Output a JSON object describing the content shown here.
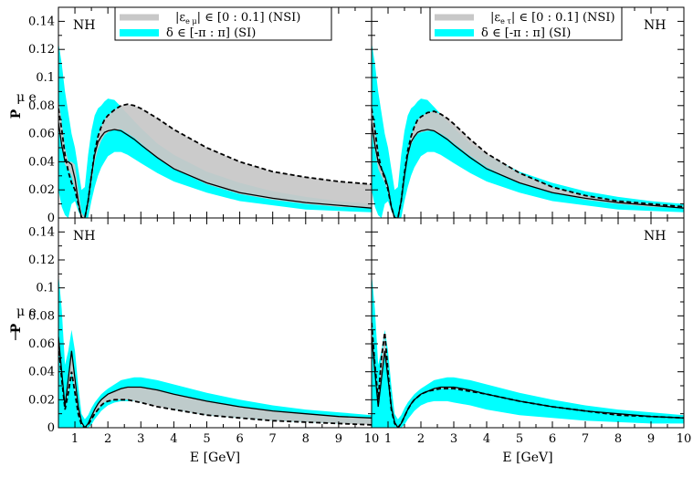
{
  "colors": {
    "nsi_band": "#c8c8c8",
    "si_band": "#00ffff",
    "line": "#000000"
  },
  "chart_data": [
    {
      "panel": "top-left",
      "type": "area",
      "ylabel": "P",
      "ylabel_sub": "μ e",
      "ylabel_bar": false,
      "xlabel": "",
      "hierarchy": "NH",
      "nh_position": "top-left",
      "legend": {
        "placement": "top-center",
        "entries": [
          {
            "name": "|ε",
            "sub": "e μ",
            "post": "| ∈ [0 : 0.1] (NSI)",
            "color": "#c8c8c8"
          },
          {
            "name": "δ ∈ [-π : π] (SI)",
            "sub": "",
            "post": "",
            "color": "#00ffff"
          }
        ]
      },
      "xlim": [
        0.5,
        10
      ],
      "ylim": [
        0,
        0.15
      ],
      "yticks": [
        "0",
        "0.02",
        "0.04",
        "0.06",
        "0.08",
        "0.1",
        "0.12",
        "0.14"
      ],
      "xticks": [],
      "x": [
        0.5,
        0.6,
        0.7,
        0.8,
        0.9,
        1.0,
        1.1,
        1.2,
        1.3,
        1.4,
        1.5,
        1.6,
        1.7,
        1.8,
        1.9,
        2.0,
        2.2,
        2.4,
        2.6,
        2.8,
        3.0,
        3.5,
        4.0,
        5.0,
        6.0,
        7.0,
        8.0,
        9.0,
        10.0
      ],
      "si_upper": [
        0.125,
        0.11,
        0.09,
        0.075,
        0.06,
        0.05,
        0.035,
        0.02,
        0.022,
        0.045,
        0.062,
        0.073,
        0.078,
        0.08,
        0.083,
        0.085,
        0.084,
        0.079,
        0.074,
        0.069,
        0.064,
        0.053,
        0.045,
        0.033,
        0.025,
        0.019,
        0.015,
        0.012,
        0.01
      ],
      "si_lower": [
        0.02,
        0.008,
        0.002,
        0.0,
        0.01,
        0.012,
        0.005,
        0.0,
        0.0,
        0.0,
        0.012,
        0.022,
        0.03,
        0.036,
        0.04,
        0.044,
        0.047,
        0.047,
        0.045,
        0.042,
        0.039,
        0.032,
        0.026,
        0.018,
        0.012,
        0.009,
        0.006,
        0.005,
        0.004
      ],
      "nsi_upper": [
        0.085,
        0.068,
        0.05,
        0.04,
        0.04,
        0.038,
        0.02,
        0.004,
        0.0,
        0.012,
        0.03,
        0.047,
        0.058,
        0.065,
        0.07,
        0.073,
        0.077,
        0.08,
        0.081,
        0.08,
        0.078,
        0.071,
        0.063,
        0.05,
        0.04,
        0.033,
        0.029,
        0.026,
        0.024
      ],
      "nsi_lower": [
        0.065,
        0.05,
        0.038,
        0.035,
        0.03,
        0.02,
        0.008,
        0.0,
        0.0,
        0.008,
        0.025,
        0.04,
        0.049,
        0.055,
        0.059,
        0.061,
        0.063,
        0.063,
        0.06,
        0.057,
        0.053,
        0.043,
        0.035,
        0.024,
        0.017,
        0.013,
        0.01,
        0.008,
        0.007
      ],
      "solid": [
        0.068,
        0.052,
        0.04,
        0.04,
        0.038,
        0.028,
        0.012,
        0.0,
        0.0,
        0.012,
        0.03,
        0.045,
        0.054,
        0.058,
        0.061,
        0.062,
        0.063,
        0.062,
        0.059,
        0.056,
        0.052,
        0.043,
        0.035,
        0.025,
        0.018,
        0.014,
        0.011,
        0.009,
        0.007
      ],
      "dashed": [
        0.078,
        0.063,
        0.045,
        0.033,
        0.025,
        0.02,
        0.01,
        0.0,
        0.0,
        0.012,
        0.03,
        0.047,
        0.058,
        0.065,
        0.07,
        0.073,
        0.077,
        0.08,
        0.081,
        0.08,
        0.078,
        0.071,
        0.063,
        0.05,
        0.04,
        0.033,
        0.029,
        0.026,
        0.024
      ]
    },
    {
      "panel": "top-right",
      "type": "area",
      "ylabel": "",
      "ylabel_sub": "",
      "ylabel_bar": false,
      "xlabel": "",
      "hierarchy": "NH",
      "nh_position": "top-right",
      "legend": {
        "placement": "top-center",
        "entries": [
          {
            "name": "|ε",
            "sub": "e τ",
            "post": "| ∈ [0 : 0.1] (NSI)",
            "color": "#c8c8c8"
          },
          {
            "name": "δ ∈ [-π : π] (SI)",
            "sub": "",
            "post": "",
            "color": "#00ffff"
          }
        ]
      },
      "xlim": [
        0.5,
        10
      ],
      "ylim": [
        0,
        0.15
      ],
      "yticks": [],
      "xticks": [],
      "x": [
        0.5,
        0.6,
        0.7,
        0.8,
        0.9,
        1.0,
        1.1,
        1.2,
        1.3,
        1.4,
        1.5,
        1.6,
        1.7,
        1.8,
        1.9,
        2.0,
        2.2,
        2.4,
        2.6,
        2.8,
        3.0,
        3.5,
        4.0,
        5.0,
        6.0,
        7.0,
        8.0,
        9.0,
        10.0
      ],
      "si_upper": [
        0.125,
        0.11,
        0.09,
        0.075,
        0.06,
        0.05,
        0.035,
        0.02,
        0.022,
        0.045,
        0.062,
        0.073,
        0.078,
        0.08,
        0.083,
        0.085,
        0.084,
        0.079,
        0.074,
        0.069,
        0.064,
        0.053,
        0.045,
        0.033,
        0.025,
        0.019,
        0.015,
        0.012,
        0.01
      ],
      "si_lower": [
        0.02,
        0.008,
        0.002,
        0.0,
        0.01,
        0.012,
        0.005,
        0.0,
        0.0,
        0.0,
        0.012,
        0.022,
        0.03,
        0.036,
        0.04,
        0.044,
        0.047,
        0.047,
        0.045,
        0.042,
        0.039,
        0.032,
        0.026,
        0.018,
        0.012,
        0.009,
        0.006,
        0.005,
        0.004
      ],
      "nsi_upper": [
        0.08,
        0.063,
        0.045,
        0.035,
        0.03,
        0.024,
        0.01,
        0.0,
        0.0,
        0.012,
        0.032,
        0.048,
        0.058,
        0.065,
        0.07,
        0.072,
        0.075,
        0.076,
        0.074,
        0.071,
        0.067,
        0.056,
        0.046,
        0.032,
        0.022,
        0.016,
        0.012,
        0.01,
        0.008
      ],
      "nsi_lower": [
        0.062,
        0.048,
        0.035,
        0.03,
        0.025,
        0.018,
        0.006,
        0.0,
        0.0,
        0.01,
        0.028,
        0.043,
        0.052,
        0.057,
        0.06,
        0.061,
        0.062,
        0.062,
        0.06,
        0.057,
        0.053,
        0.044,
        0.036,
        0.025,
        0.018,
        0.013,
        0.01,
        0.008,
        0.007
      ],
      "solid": [
        0.068,
        0.052,
        0.04,
        0.035,
        0.03,
        0.022,
        0.008,
        0.0,
        0.0,
        0.012,
        0.03,
        0.045,
        0.054,
        0.058,
        0.061,
        0.062,
        0.063,
        0.062,
        0.059,
        0.056,
        0.052,
        0.043,
        0.035,
        0.025,
        0.018,
        0.014,
        0.011,
        0.009,
        0.007
      ],
      "dashed": [
        0.078,
        0.063,
        0.045,
        0.035,
        0.028,
        0.02,
        0.008,
        0.0,
        0.0,
        0.012,
        0.032,
        0.048,
        0.058,
        0.065,
        0.07,
        0.072,
        0.075,
        0.076,
        0.074,
        0.071,
        0.067,
        0.056,
        0.046,
        0.032,
        0.022,
        0.016,
        0.012,
        0.01,
        0.008
      ]
    },
    {
      "panel": "bottom-left",
      "type": "area",
      "ylabel": "P",
      "ylabel_sub": "μ e",
      "ylabel_bar": true,
      "xlabel": "E [GeV]",
      "hierarchy": "NH",
      "nh_position": "top-left",
      "legend": null,
      "xlim": [
        0.5,
        10
      ],
      "ylim": [
        0,
        0.15
      ],
      "yticks": [
        "0",
        "0.02",
        "0.04",
        "0.06",
        "0.08",
        "0.1",
        "0.12",
        "0.14"
      ],
      "xticks": [
        "1",
        "2",
        "3",
        "4",
        "5",
        "6",
        "7",
        "8",
        "9",
        "10"
      ],
      "x": [
        0.5,
        0.6,
        0.7,
        0.8,
        0.9,
        1.0,
        1.1,
        1.2,
        1.3,
        1.4,
        1.5,
        1.6,
        1.7,
        1.8,
        1.9,
        2.0,
        2.2,
        2.4,
        2.6,
        2.8,
        3.0,
        3.5,
        4.0,
        5.0,
        6.0,
        7.0,
        8.0,
        9.0,
        10.0
      ],
      "si_upper": [
        0.11,
        0.085,
        0.045,
        0.055,
        0.07,
        0.055,
        0.03,
        0.01,
        0.006,
        0.009,
        0.014,
        0.018,
        0.021,
        0.024,
        0.026,
        0.028,
        0.031,
        0.034,
        0.035,
        0.036,
        0.036,
        0.034,
        0.031,
        0.025,
        0.02,
        0.016,
        0.013,
        0.011,
        0.009
      ],
      "si_lower": [
        0.0,
        0.0,
        0.0,
        0.0,
        0.0,
        0.0,
        0.0,
        0.0,
        0.0,
        0.0,
        0.002,
        0.006,
        0.009,
        0.012,
        0.014,
        0.016,
        0.018,
        0.019,
        0.019,
        0.019,
        0.018,
        0.016,
        0.013,
        0.009,
        0.007,
        0.005,
        0.004,
        0.003,
        0.003
      ],
      "nsi_upper": [
        0.065,
        0.04,
        0.015,
        0.035,
        0.055,
        0.035,
        0.015,
        0.004,
        0.0,
        0.003,
        0.008,
        0.013,
        0.017,
        0.02,
        0.022,
        0.024,
        0.026,
        0.028,
        0.029,
        0.029,
        0.029,
        0.027,
        0.024,
        0.019,
        0.015,
        0.012,
        0.01,
        0.008,
        0.007
      ],
      "nsi_lower": [
        0.06,
        0.035,
        0.013,
        0.025,
        0.04,
        0.025,
        0.01,
        0.002,
        0.0,
        0.002,
        0.006,
        0.01,
        0.013,
        0.016,
        0.018,
        0.019,
        0.02,
        0.02,
        0.02,
        0.019,
        0.018,
        0.015,
        0.013,
        0.009,
        0.007,
        0.005,
        0.004,
        0.003,
        0.002
      ],
      "solid": [
        0.065,
        0.04,
        0.015,
        0.035,
        0.055,
        0.035,
        0.015,
        0.004,
        0.0,
        0.003,
        0.008,
        0.013,
        0.017,
        0.02,
        0.022,
        0.024,
        0.026,
        0.028,
        0.029,
        0.029,
        0.029,
        0.027,
        0.024,
        0.019,
        0.015,
        0.012,
        0.01,
        0.008,
        0.007
      ],
      "dashed": [
        0.06,
        0.035,
        0.013,
        0.025,
        0.04,
        0.025,
        0.01,
        0.002,
        0.0,
        0.002,
        0.006,
        0.01,
        0.013,
        0.016,
        0.018,
        0.019,
        0.02,
        0.02,
        0.02,
        0.019,
        0.018,
        0.015,
        0.013,
        0.009,
        0.007,
        0.005,
        0.004,
        0.003,
        0.002
      ]
    },
    {
      "panel": "bottom-right",
      "type": "area",
      "ylabel": "",
      "ylabel_sub": "",
      "ylabel_bar": false,
      "xlabel": "E [GeV]",
      "hierarchy": "NH",
      "nh_position": "top-right",
      "legend": null,
      "xlim": [
        0.5,
        10
      ],
      "ylim": [
        0,
        0.15
      ],
      "yticks": [],
      "xticks": [
        "1",
        "2",
        "3",
        "4",
        "5",
        "6",
        "7",
        "8",
        "9",
        "10"
      ],
      "x": [
        0.5,
        0.6,
        0.7,
        0.8,
        0.9,
        1.0,
        1.1,
        1.2,
        1.3,
        1.4,
        1.5,
        1.6,
        1.7,
        1.8,
        1.9,
        2.0,
        2.2,
        2.4,
        2.6,
        2.8,
        3.0,
        3.5,
        4.0,
        5.0,
        6.0,
        7.0,
        8.0,
        9.0,
        10.0
      ],
      "si_upper": [
        0.11,
        0.085,
        0.045,
        0.055,
        0.07,
        0.055,
        0.03,
        0.01,
        0.006,
        0.009,
        0.014,
        0.018,
        0.021,
        0.024,
        0.026,
        0.028,
        0.031,
        0.034,
        0.035,
        0.036,
        0.036,
        0.034,
        0.031,
        0.025,
        0.02,
        0.016,
        0.013,
        0.011,
        0.009
      ],
      "si_lower": [
        0.0,
        0.0,
        0.0,
        0.0,
        0.0,
        0.0,
        0.0,
        0.0,
        0.0,
        0.0,
        0.002,
        0.006,
        0.009,
        0.012,
        0.014,
        0.016,
        0.018,
        0.019,
        0.019,
        0.019,
        0.018,
        0.016,
        0.013,
        0.009,
        0.007,
        0.005,
        0.004,
        0.003,
        0.003
      ],
      "nsi_upper": [
        0.075,
        0.045,
        0.02,
        0.05,
        0.068,
        0.04,
        0.015,
        0.004,
        0.0,
        0.003,
        0.008,
        0.013,
        0.017,
        0.02,
        0.022,
        0.024,
        0.026,
        0.028,
        0.029,
        0.029,
        0.029,
        0.027,
        0.024,
        0.019,
        0.015,
        0.012,
        0.01,
        0.008,
        0.007
      ],
      "nsi_lower": [
        0.065,
        0.04,
        0.015,
        0.035,
        0.055,
        0.035,
        0.013,
        0.003,
        0.0,
        0.003,
        0.008,
        0.013,
        0.017,
        0.02,
        0.022,
        0.024,
        0.026,
        0.027,
        0.028,
        0.028,
        0.028,
        0.026,
        0.024,
        0.019,
        0.015,
        0.012,
        0.009,
        0.008,
        0.007
      ],
      "solid": [
        0.065,
        0.04,
        0.015,
        0.035,
        0.055,
        0.035,
        0.015,
        0.004,
        0.0,
        0.003,
        0.008,
        0.013,
        0.017,
        0.02,
        0.022,
        0.024,
        0.026,
        0.028,
        0.029,
        0.029,
        0.029,
        0.027,
        0.024,
        0.019,
        0.015,
        0.012,
        0.01,
        0.008,
        0.007
      ],
      "dashed": [
        0.075,
        0.045,
        0.02,
        0.05,
        0.068,
        0.04,
        0.013,
        0.003,
        0.0,
        0.003,
        0.008,
        0.013,
        0.017,
        0.02,
        0.022,
        0.024,
        0.026,
        0.027,
        0.028,
        0.028,
        0.028,
        0.026,
        0.024,
        0.019,
        0.015,
        0.012,
        0.009,
        0.008,
        0.007
      ]
    }
  ]
}
